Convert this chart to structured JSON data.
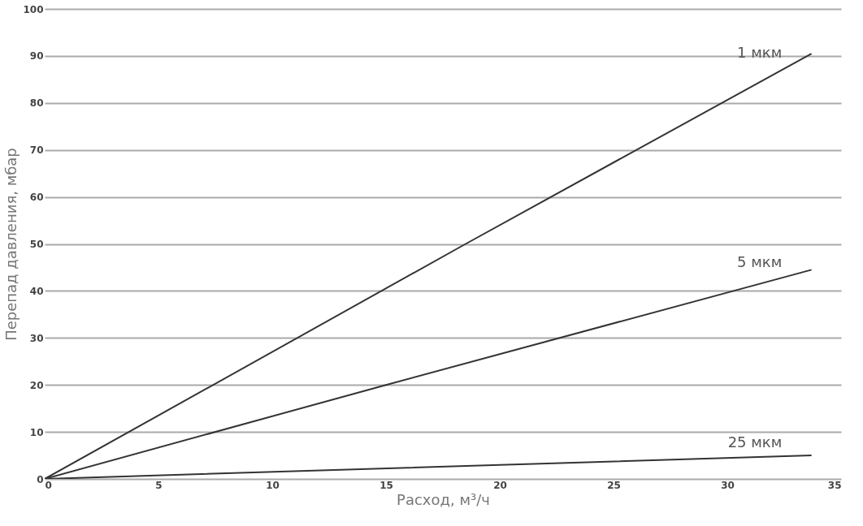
{
  "chart_data": {
    "type": "line",
    "xlabel": "Расход, м³/ч",
    "ylabel": "Перепад давления, мбар",
    "xlim": [
      0,
      35
    ],
    "xticks": [
      0,
      5,
      10,
      15,
      20,
      25,
      30,
      35
    ],
    "ylim": [
      0,
      100
    ],
    "yticks": [
      0,
      10,
      20,
      30,
      40,
      50,
      60,
      70,
      80,
      90,
      100
    ],
    "grid": "y",
    "legend": false,
    "marker": "none",
    "line_style": "solid",
    "series": [
      {
        "name": "1 мкм",
        "color": "#333333",
        "x": [
          0,
          18.5,
          33.7
        ],
        "values": [
          0,
          50,
          90.5
        ]
      },
      {
        "name": "5 мкм",
        "color": "#333333",
        "x": [
          0,
          15,
          33.7
        ],
        "values": [
          0,
          20,
          44.5
        ]
      },
      {
        "name": "25 мкм",
        "color": "#333333",
        "x": [
          0,
          20,
          33.7
        ],
        "values": [
          0,
          3,
          5
        ]
      }
    ]
  }
}
